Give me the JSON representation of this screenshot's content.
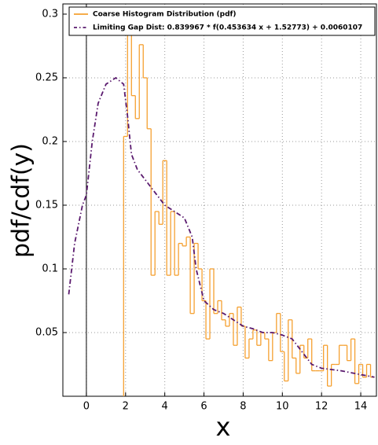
{
  "chart_data": {
    "type": "histogram",
    "xlabel": "x",
    "ylabel": "pdf/cdf(y)",
    "xlim": [
      -1.2,
      14.8
    ],
    "ylim": [
      0,
      0.308
    ],
    "xticks": [
      0,
      2,
      4,
      6,
      8,
      10,
      12,
      14
    ],
    "yticks": [
      0.05,
      0.1,
      0.15,
      0.2,
      0.25,
      0.3
    ],
    "grid": true,
    "legend": "upper right",
    "series": [
      {
        "name": "Coarse Histogram Distribution (pdf)",
        "color": "#f5a030",
        "bins": [
          1.9,
          2.1,
          2.3,
          2.5,
          2.7,
          2.9,
          3.1,
          3.3,
          3.5,
          3.7,
          3.9,
          4.1,
          4.3,
          4.5,
          4.7,
          4.9,
          5.1,
          5.3,
          5.5,
          5.7,
          5.9,
          6.1,
          6.3,
          6.5,
          6.7,
          6.9,
          7.1,
          7.3,
          7.5,
          7.7,
          7.9,
          8.1,
          8.3,
          8.5,
          8.7,
          8.9,
          9.1,
          9.3,
          9.5,
          9.7,
          9.9,
          10.1,
          10.3,
          10.5,
          10.7,
          10.9,
          11.1,
          11.3,
          11.5,
          11.7,
          11.9,
          12.1,
          12.3,
          12.5,
          12.7,
          12.9,
          13.1,
          13.3,
          13.5,
          13.7,
          13.9,
          14.1,
          14.3,
          14.5,
          14.7
        ],
        "values": [
          0.204,
          0.29,
          0.236,
          0.218,
          0.276,
          0.25,
          0.21,
          0.095,
          0.145,
          0.135,
          0.185,
          0.095,
          0.145,
          0.095,
          0.12,
          0.118,
          0.125,
          0.065,
          0.12,
          0.1,
          0.075,
          0.045,
          0.1,
          0.065,
          0.075,
          0.06,
          0.055,
          0.065,
          0.04,
          0.07,
          0.055,
          0.03,
          0.045,
          0.052,
          0.04,
          0.05,
          0.045,
          0.028,
          0.05,
          0.065,
          0.035,
          0.012,
          0.06,
          0.03,
          0.018,
          0.04,
          0.03,
          0.045,
          0.02,
          0.02,
          0.02,
          0.04,
          0.008,
          0.025,
          0.025,
          0.04,
          0.04,
          0.028,
          0.045,
          0.01,
          0.025,
          0.015,
          0.025,
          0.015
        ]
      },
      {
        "name": "Limiting Gap Dist: 0.839967 * f(0.453634 x + 1.52773) + 0.0060107",
        "color": "#5a1a6e",
        "x": [
          -0.9,
          -0.6,
          -0.2,
          0,
          0.3,
          0.6,
          1,
          1.5,
          1.9,
          2.1,
          2.3,
          2.6,
          3,
          3.5,
          4,
          4.5,
          5,
          5.4,
          5.6,
          6,
          6.5,
          7,
          7.5,
          8,
          8.5,
          9,
          9.5,
          10,
          10.5,
          11,
          11.5,
          12,
          13,
          14,
          14.7
        ],
        "values": [
          0.08,
          0.12,
          0.15,
          0.158,
          0.2,
          0.23,
          0.245,
          0.25,
          0.245,
          0.22,
          0.19,
          0.178,
          0.17,
          0.16,
          0.15,
          0.145,
          0.14,
          0.125,
          0.1,
          0.075,
          0.068,
          0.065,
          0.06,
          0.055,
          0.053,
          0.05,
          0.05,
          0.048,
          0.045,
          0.035,
          0.025,
          0.022,
          0.02,
          0.017,
          0.015
        ]
      }
    ]
  }
}
